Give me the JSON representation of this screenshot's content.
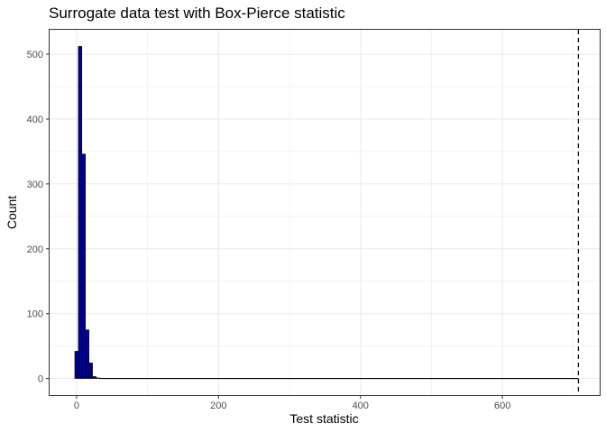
{
  "chart_data": {
    "type": "bar",
    "title": "Surrogate data test with Box-Pierce statistic",
    "xlabel": "Test statistic",
    "ylabel": "Count",
    "xlim": [
      -38,
      737
    ],
    "ylim": [
      -25.6,
      537.6
    ],
    "x_ticks": [
      0,
      200,
      400,
      600
    ],
    "y_ticks": [
      0,
      100,
      200,
      300,
      400,
      500
    ],
    "grid": true,
    "legend": "none",
    "bin_width": 5,
    "bins": {
      "x_start": [
        -2.5,
        2.5,
        7.5,
        12.5,
        17.5,
        22.5,
        27.5
      ],
      "counts": [
        42,
        512,
        346,
        75,
        24,
        3,
        1
      ]
    },
    "tail": {
      "from": 32.5,
      "to": 707,
      "count": 0
    },
    "observed_statistic": 707,
    "colors": {
      "fill": "#00008b",
      "outline": "#000000",
      "grid": "#ebebeb",
      "panel_border": "#333333"
    }
  }
}
